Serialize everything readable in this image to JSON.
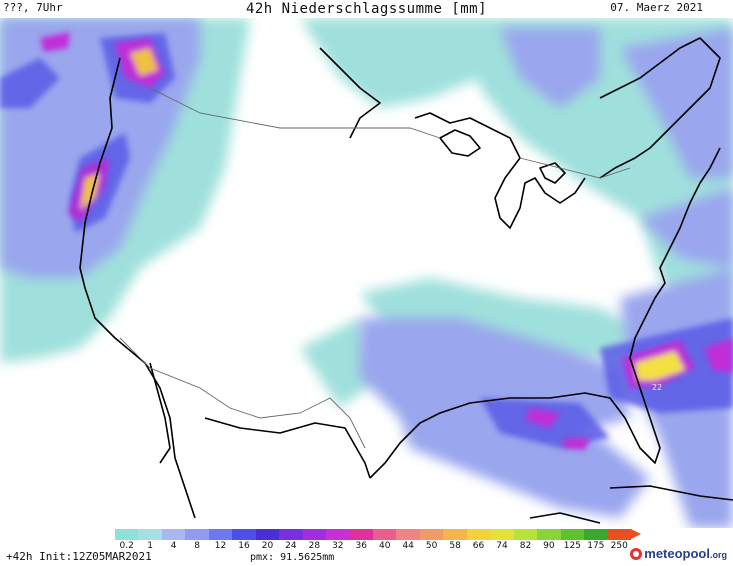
{
  "header": {
    "left": "???, 7Uhr",
    "title": "42h Niederschlagssumme [mm]",
    "date": "07. Maerz 2021"
  },
  "legend": {
    "ticks": [
      "0.2",
      "1",
      "4",
      "8",
      "12",
      "16",
      "20",
      "24",
      "28",
      "32",
      "36",
      "40",
      "44",
      "50",
      "58",
      "66",
      "74",
      "82",
      "90",
      "125",
      "175",
      "250"
    ],
    "colors": [
      "#8ee0d8",
      "#a6dfe6",
      "#aab8f0",
      "#8f9cf2",
      "#6f78ee",
      "#4e4fe6",
      "#4a2fd6",
      "#7a2ee0",
      "#a12fe0",
      "#c82fd8",
      "#e0309e",
      "#ec5c8c",
      "#f08484",
      "#f39a6a",
      "#f6b44c",
      "#f6d23a",
      "#e4e23a",
      "#b6e23a",
      "#8ad43a",
      "#5ec22e",
      "#3aa82e",
      "#e8501f"
    ]
  },
  "footer": {
    "init": "+42h Init:12Z05MAR2021",
    "pmx": "pmx: 91.5625mm"
  },
  "logo": {
    "name": "meteopool",
    "suffix": ".org"
  },
  "map": {
    "labels": [
      {
        "text": "22"
      }
    ]
  }
}
